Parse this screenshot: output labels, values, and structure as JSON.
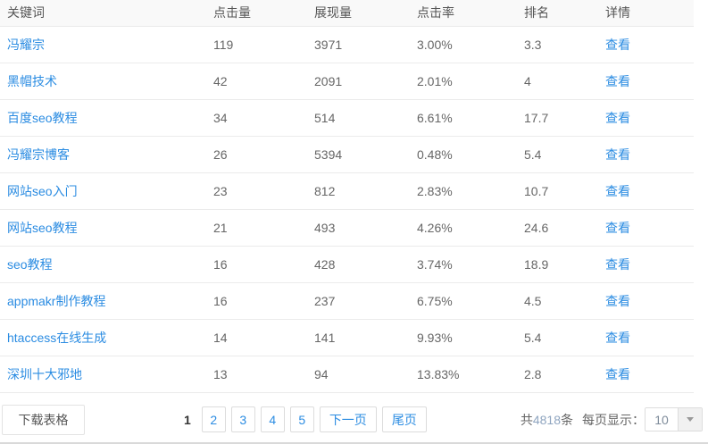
{
  "table": {
    "columns": [
      "关键词",
      "点击量",
      "展现量",
      "点击率",
      "排名",
      "详情"
    ],
    "rows": [
      {
        "keyword": "冯耀宗",
        "clicks": "119",
        "impressions": "3971",
        "ctr": "3.00%",
        "rank": "3.3",
        "detail": "查看"
      },
      {
        "keyword": "黑帽技术",
        "clicks": "42",
        "impressions": "2091",
        "ctr": "2.01%",
        "rank": "4",
        "detail": "查看"
      },
      {
        "keyword": "百度seo教程",
        "clicks": "34",
        "impressions": "514",
        "ctr": "6.61%",
        "rank": "17.7",
        "detail": "查看"
      },
      {
        "keyword": "冯耀宗博客",
        "clicks": "26",
        "impressions": "5394",
        "ctr": "0.48%",
        "rank": "5.4",
        "detail": "查看"
      },
      {
        "keyword": "网站seo入门",
        "clicks": "23",
        "impressions": "812",
        "ctr": "2.83%",
        "rank": "10.7",
        "detail": "查看"
      },
      {
        "keyword": "网站seo教程",
        "clicks": "21",
        "impressions": "493",
        "ctr": "4.26%",
        "rank": "24.6",
        "detail": "查看"
      },
      {
        "keyword": "seo教程",
        "clicks": "16",
        "impressions": "428",
        "ctr": "3.74%",
        "rank": "18.9",
        "detail": "查看"
      },
      {
        "keyword": "appmakr制作教程",
        "clicks": "16",
        "impressions": "237",
        "ctr": "6.75%",
        "rank": "4.5",
        "detail": "查看"
      },
      {
        "keyword": "htaccess在线生成",
        "clicks": "14",
        "impressions": "141",
        "ctr": "9.93%",
        "rank": "5.4",
        "detail": "查看"
      },
      {
        "keyword": "深圳十大邪地",
        "clicks": "13",
        "impressions": "94",
        "ctr": "13.83%",
        "rank": "2.8",
        "detail": "查看"
      }
    ]
  },
  "footer": {
    "download_label": "下载表格",
    "pagination": {
      "current": "1",
      "pages": [
        "2",
        "3",
        "4",
        "5"
      ],
      "next": "下一页",
      "last": "尾页"
    },
    "total_prefix": "共",
    "total_count": "4818",
    "total_suffix": "条",
    "page_size_label": "每页显示：",
    "page_size_value": "10"
  },
  "colors": {
    "link_blue": "#2b8ce2",
    "header_bg": "#f9f9f9",
    "header_text": "#555555",
    "cell_text": "#666666",
    "row_separator": "#ebebeb",
    "pager_border": "#dcdcdc",
    "count_number": "#8fa5c0",
    "bottom_line": "#d9d9d9"
  }
}
